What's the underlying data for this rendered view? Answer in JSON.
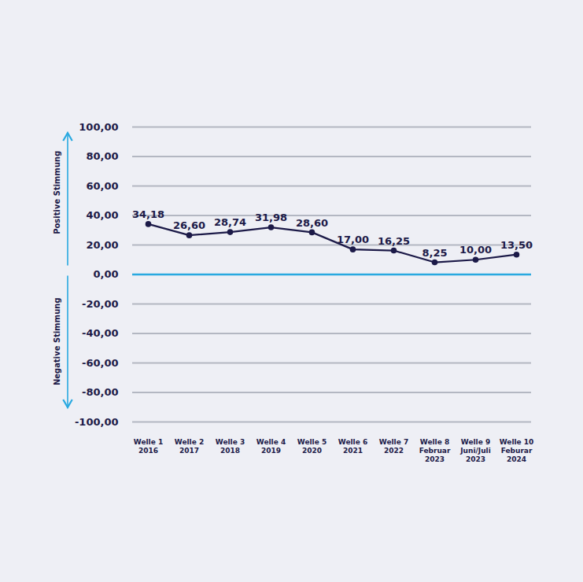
{
  "chart_data": {
    "type": "line",
    "categories": [
      "Welle 1\n2016",
      "Welle 2\n2017",
      "Welle 3\n2018",
      "Welle 4\n2019",
      "Welle 5\n2020",
      "Welle 6\n2021",
      "Welle 7\n2022",
      "Welle 8\nFebruar\n2023",
      "Welle 9\nJuni/Juli\n2023",
      "Welle 10\nFeburar\n2024"
    ],
    "values": [
      34.18,
      26.6,
      28.74,
      31.98,
      28.6,
      17.0,
      16.25,
      8.25,
      10.0,
      13.5
    ],
    "value_labels": [
      "34,18",
      "26,60",
      "28,74",
      "31,98",
      "28,60",
      "17,00",
      "16,25",
      "8,25",
      "10,00",
      "13,50"
    ],
    "data_labels": true,
    "color": "#1c1a48",
    "marker": "circle",
    "grid": true,
    "ylim": [
      -100,
      100
    ],
    "yticks": [
      {
        "value": -100,
        "label": "-100,00"
      },
      {
        "value": -80,
        "label": "-80,00"
      },
      {
        "value": -60,
        "label": "-60,00"
      },
      {
        "value": -40,
        "label": "-40,00"
      },
      {
        "value": -20,
        "label": "-20,00"
      },
      {
        "value": 0,
        "label": "0,00"
      },
      {
        "value": 20,
        "label": "20,00"
      },
      {
        "value": 40,
        "label": "40,00"
      },
      {
        "value": 60,
        "label": "60,00"
      },
      {
        "value": 80,
        "label": "80,00"
      },
      {
        "value": 100,
        "label": "100,00"
      }
    ],
    "annotations": [
      "Positive Stimmung",
      "Negative Stimmung"
    ]
  }
}
